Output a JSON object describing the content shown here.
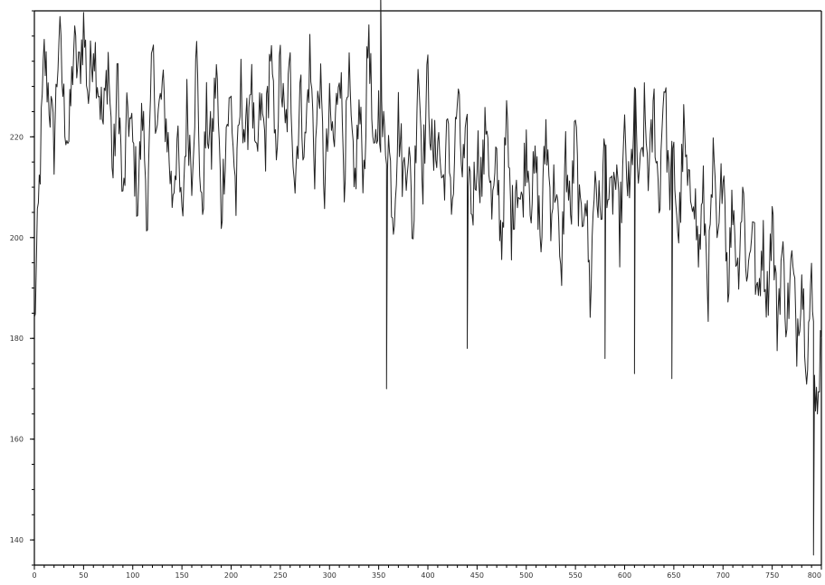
{
  "chart_data": {
    "type": "line",
    "title": "",
    "xlabel": "",
    "ylabel": "",
    "xlim": [
      0,
      800
    ],
    "ylim": [
      135,
      245
    ],
    "grid": false,
    "x_ticks": [
      0,
      50,
      100,
      150,
      200,
      250,
      300,
      350,
      400,
      450,
      500,
      550,
      600,
      650,
      700,
      750,
      800
    ],
    "y_ticks": [
      140,
      160,
      180,
      200,
      220
    ],
    "x_tick_labels": [
      "0",
      "50",
      "100",
      "150",
      "200",
      "250",
      "300",
      "350",
      "400",
      "450",
      "500",
      "550",
      "600",
      "650",
      "700",
      "750",
      "800"
    ],
    "y_tick_labels": [
      "140",
      "160",
      "180",
      "200",
      "220"
    ],
    "color": "#222222",
    "series": [
      {
        "x": [
          0,
          5,
          10,
          15,
          20,
          25,
          30,
          35,
          40,
          45,
          50,
          55,
          60,
          65,
          70,
          75,
          80,
          85,
          90,
          95,
          100,
          105,
          110,
          115,
          120,
          125,
          130,
          135,
          140,
          145,
          150,
          155,
          160,
          165,
          170,
          175,
          180,
          185,
          190,
          195,
          200,
          205,
          210,
          215,
          220,
          225,
          230,
          235,
          240,
          245,
          250,
          255,
          260,
          265,
          270,
          275,
          280,
          285,
          290,
          295,
          300,
          305,
          310,
          315,
          320,
          325,
          330,
          335,
          340,
          345,
          350,
          355,
          360,
          365,
          370,
          375,
          380,
          385,
          390,
          395,
          400,
          405,
          410,
          415,
          420,
          425,
          430,
          435,
          440,
          445,
          450,
          455,
          460,
          465,
          470,
          475,
          480,
          485,
          490,
          495,
          500,
          505,
          510,
          515,
          520,
          525,
          530,
          535,
          540,
          545,
          550,
          555,
          560,
          565,
          570,
          575,
          580,
          585,
          590,
          595,
          600,
          605,
          610,
          615,
          620,
          625,
          630,
          635,
          640,
          645,
          650,
          655,
          660,
          665,
          670,
          675,
          680,
          685,
          690,
          695,
          700,
          705,
          710,
          715,
          720,
          725,
          730,
          735,
          740,
          745,
          750,
          755,
          760,
          765,
          770,
          775,
          780,
          785,
          790,
          795,
          800
        ],
        "values": [
          182,
          210,
          236,
          228,
          218,
          241,
          226,
          219,
          238,
          232,
          242,
          228,
          240,
          231,
          222,
          236,
          212,
          233,
          205,
          226,
          218,
          208,
          225,
          204,
          236,
          222,
          229,
          221,
          208,
          219,
          202,
          226,
          214,
          236,
          203,
          224,
          217,
          234,
          205,
          222,
          227,
          207,
          230,
          218,
          233,
          212,
          226,
          219,
          238,
          216,
          234,
          220,
          233,
          211,
          229,
          217,
          236,
          215,
          232,
          210,
          224,
          218,
          237,
          214,
          230,
          208,
          225,
          213,
          243,
          212,
          226,
          220,
          219,
          204,
          224,
          212,
          219,
          200,
          236,
          213,
          232,
          214,
          221,
          210,
          220,
          207,
          228,
          213,
          218,
          205,
          218,
          211,
          225,
          204,
          214,
          199,
          223,
          202,
          213,
          205,
          220,
          208,
          214,
          198,
          222,
          206,
          212,
          190,
          217,
          203,
          221,
          201,
          211,
          188,
          214,
          203,
          218,
          205,
          212,
          201,
          219,
          206,
          227,
          208,
          224,
          212,
          226,
          206,
          233,
          210,
          215,
          200,
          221,
          207,
          212,
          196,
          208,
          190,
          214,
          196,
          218,
          191,
          208,
          193,
          210,
          191,
          206,
          185,
          200,
          188,
          205,
          183,
          197,
          184,
          195,
          181,
          193,
          177,
          190,
          167,
          180
        ]
      }
    ],
    "annotations": [
      {
        "x": 352,
        "y": 250
      },
      {
        "x": 358,
        "y": 170
      },
      {
        "x": 440,
        "y": 178
      },
      {
        "x": 580,
        "y": 176
      },
      {
        "x": 610,
        "y": 173
      },
      {
        "x": 648,
        "y": 172
      },
      {
        "x": 792,
        "y": 137
      }
    ]
  }
}
